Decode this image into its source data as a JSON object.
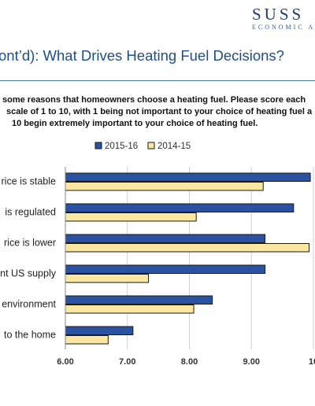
{
  "header": {
    "brand_name": "SUSS",
    "brand_sub": "ECONOMIC A",
    "title": "ont’d): What Drives Heating Fuel Decisions?"
  },
  "question": {
    "line1": "some reasons that homeowners choose a heating fuel. Please score each",
    "line2": "scale of 1 to 10, with 1 being not important to your choice of heating fuel a",
    "line3": "10 begin extremely important to your choice of heating fuel."
  },
  "colors": {
    "series_2015_16": "#2b52a0",
    "series_2014_15": "#fbe7a2",
    "bar_border": "#1a1a1a",
    "grid": "#d0d0d0",
    "title": "#1f4e8c"
  },
  "chart_data": {
    "type": "bar",
    "orientation": "horizontal",
    "categories": [
      "rice is stable",
      "is regulated",
      "rice is lower",
      "nt US supply",
      "environment",
      "to the home"
    ],
    "series": [
      {
        "name": "2015-16",
        "values": [
          9.95,
          9.68,
          9.22,
          9.22,
          8.37,
          7.09
        ]
      },
      {
        "name": "2014-15",
        "values": [
          9.19,
          8.11,
          9.93,
          7.34,
          8.07,
          6.69
        ]
      }
    ],
    "ticks": [
      "6.00",
      "7.00",
      "8.00",
      "9.00",
      "10"
    ],
    "xlim": [
      6,
      10
    ],
    "grid": true,
    "legend_position": "top"
  }
}
